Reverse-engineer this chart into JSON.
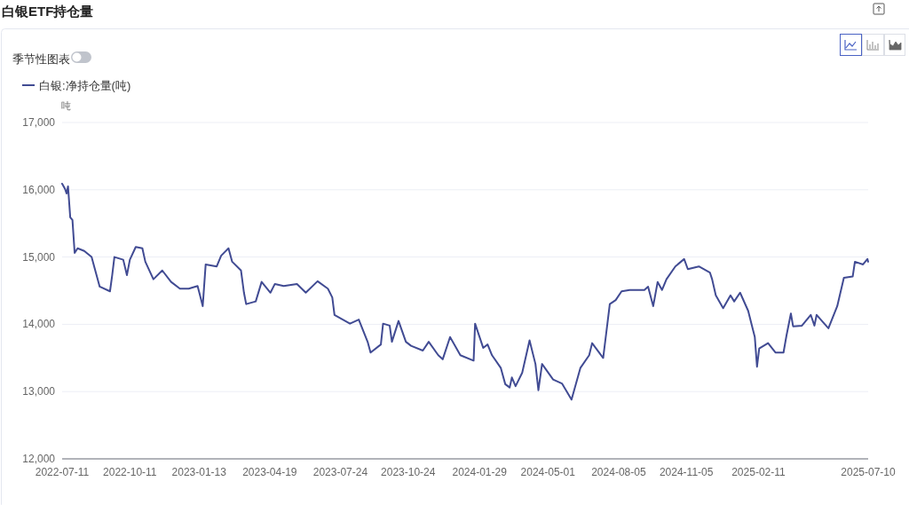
{
  "chart_data": {
    "type": "line",
    "title": "白银ETF持仓量",
    "ylabel": "吨",
    "annotations": [
      "季节性图表"
    ],
    "legend": "top left",
    "grid": "y",
    "marker": "none",
    "line_style": "solid",
    "xlim": [
      "2022-07-11",
      "2025-07-10"
    ],
    "xticks": [
      "2022-07-11",
      "2022-10-11",
      "2023-01-13",
      "2023-04-19",
      "2023-07-24",
      "2023-10-24",
      "2024-01-29",
      "2024-05-01",
      "2024-08-05",
      "2024-11-05",
      "2025-02-11",
      "2025-07-10"
    ],
    "ylim": [
      12000,
      17000
    ],
    "yticks": [
      {
        "value": 12000,
        "label": "12,000"
      },
      {
        "value": 13000,
        "label": "13,000"
      },
      {
        "value": 14000,
        "label": "14,000"
      },
      {
        "value": 15000,
        "label": "15,000"
      },
      {
        "value": 16000,
        "label": "16,000"
      },
      {
        "value": 17000,
        "label": "17,000"
      }
    ],
    "x": [
      "2022-07-11",
      "2022-07-15",
      "2022-07-17",
      "2022-07-19",
      "2022-07-22",
      "2022-07-25",
      "2022-07-28",
      "2022-08-01",
      "2022-08-10",
      "2022-08-20",
      "2022-08-25",
      "2022-08-31",
      "2022-09-14",
      "2022-09-17",
      "2022-09-20",
      "2022-10-02",
      "2022-10-07",
      "2022-10-11",
      "2022-10-19",
      "2022-10-28",
      "2022-11-01",
      "2022-11-12",
      "2022-11-24",
      "2022-12-06",
      "2022-12-18",
      "2022-12-30",
      "2023-01-11",
      "2023-01-15",
      "2023-01-18",
      "2023-01-22",
      "2023-02-06",
      "2023-02-12",
      "2023-02-22",
      "2023-02-27",
      "2023-03-11",
      "2023-03-15",
      "2023-03-18",
      "2023-03-31",
      "2023-04-08",
      "2023-04-20",
      "2023-04-26",
      "2023-05-08",
      "2023-05-26",
      "2023-06-07",
      "2023-06-23",
      "2023-07-07",
      "2023-07-13",
      "2023-07-16",
      "2023-08-06",
      "2023-08-18",
      "2023-08-30",
      "2023-09-03",
      "2023-09-17",
      "2023-09-20",
      "2023-09-29",
      "2023-10-02",
      "2023-10-11",
      "2023-10-21",
      "2023-10-28",
      "2023-11-13",
      "2023-11-21",
      "2023-12-04",
      "2023-12-10",
      "2023-12-20",
      "2024-01-03",
      "2024-01-21",
      "2024-01-23",
      "2024-02-03",
      "2024-02-09",
      "2024-02-15",
      "2024-02-27",
      "2024-03-04",
      "2024-03-10",
      "2024-03-13",
      "2024-03-18",
      "2024-03-27",
      "2024-04-06",
      "2024-04-14",
      "2024-04-18",
      "2024-04-23",
      "2024-05-08",
      "2024-05-20",
      "2024-06-02",
      "2024-06-14",
      "2024-06-26",
      "2024-06-30",
      "2024-07-15",
      "2024-07-24",
      "2024-08-01",
      "2024-08-09",
      "2024-08-20",
      "2024-09-09",
      "2024-09-14",
      "2024-09-21",
      "2024-09-27",
      "2024-10-03",
      "2024-10-09",
      "2024-10-21",
      "2024-11-02",
      "2024-11-07",
      "2024-11-22",
      "2024-12-07",
      "2024-12-10",
      "2024-12-15",
      "2024-12-25",
      "2025-01-04",
      "2025-01-09",
      "2025-01-17",
      "2025-01-28",
      "2025-02-03",
      "2025-02-06",
      "2025-02-09",
      "2025-02-12",
      "2025-02-24",
      "2025-03-06",
      "2025-03-17",
      "2025-03-21",
      "2025-03-27",
      "2025-03-30",
      "2025-04-11",
      "2025-04-23",
      "2025-04-28",
      "2025-05-01",
      "2025-05-17",
      "2025-05-29",
      "2025-06-07",
      "2025-06-19",
      "2025-06-22",
      "2025-07-03",
      "2025-07-09",
      "2025-07-10"
    ],
    "series": [
      {
        "name": "白银:净持仓量(吨)",
        "color": "#414b93",
        "values": [
          16090,
          16010,
          15945,
          16050,
          15590,
          15550,
          15060,
          15130,
          15090,
          15000,
          14800,
          14560,
          14490,
          14730,
          15000,
          14960,
          14730,
          14960,
          15150,
          15130,
          14930,
          14670,
          14800,
          14630,
          14530,
          14530,
          14570,
          14400,
          14270,
          14890,
          14860,
          15020,
          15130,
          14930,
          14800,
          14470,
          14300,
          14340,
          14630,
          14470,
          14600,
          14570,
          14600,
          14470,
          14640,
          14530,
          14400,
          14140,
          14010,
          14070,
          13740,
          13580,
          13700,
          14010,
          13980,
          13740,
          14050,
          13740,
          13680,
          13610,
          13740,
          13540,
          13480,
          13810,
          13540,
          13460,
          14010,
          13650,
          13700,
          13540,
          13350,
          13110,
          13060,
          13210,
          13080,
          13280,
          13760,
          13410,
          13020,
          13410,
          13180,
          13120,
          12880,
          13350,
          13540,
          13720,
          13500,
          14300,
          14360,
          14490,
          14510,
          14510,
          14560,
          14270,
          14630,
          14510,
          14670,
          14860,
          14970,
          14820,
          14860,
          14770,
          14670,
          14430,
          14240,
          14430,
          14340,
          14470,
          14200,
          13940,
          13810,
          13370,
          13640,
          13720,
          13580,
          13580,
          13830,
          14160,
          13970,
          13980,
          14140,
          13980,
          14140,
          13940,
          14270,
          14690,
          14710,
          14930,
          14890,
          14970,
          14930
        ]
      }
    ]
  }
}
